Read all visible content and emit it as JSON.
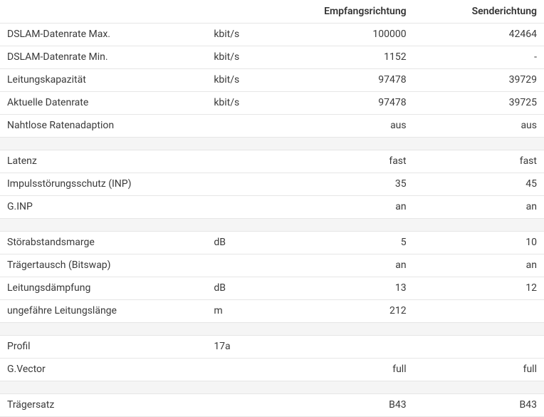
{
  "columns": {
    "label": "",
    "unit": "",
    "down": "Empfangsrichtung",
    "up": "Senderichtung"
  },
  "rows": [
    {
      "type": "data",
      "label": "DSLAM-Datenrate Max.",
      "unit": "kbit/s",
      "down": "100000",
      "up": "42464"
    },
    {
      "type": "data",
      "label": "DSLAM-Datenrate Min.",
      "unit": "kbit/s",
      "down": "1152",
      "up": "-"
    },
    {
      "type": "data",
      "label": "Leitungskapazität",
      "unit": "kbit/s",
      "down": "97478",
      "up": "39729"
    },
    {
      "type": "data",
      "label": "Aktuelle Datenrate",
      "unit": "kbit/s",
      "down": "97478",
      "up": "39725"
    },
    {
      "type": "data",
      "label": "Nahtlose Ratenadaption",
      "unit": "",
      "down": "aus",
      "up": "aus"
    },
    {
      "type": "spacer"
    },
    {
      "type": "data",
      "label": "Latenz",
      "unit": "",
      "down": "fast",
      "up": "fast"
    },
    {
      "type": "data",
      "label": "Impulsstörungsschutz (INP)",
      "unit": "",
      "down": "35",
      "up": "45"
    },
    {
      "type": "data",
      "label": "G.INP",
      "unit": "",
      "down": "an",
      "up": "an"
    },
    {
      "type": "spacer"
    },
    {
      "type": "data",
      "label": "Störabstandsmarge",
      "unit": "dB",
      "down": "5",
      "up": "10"
    },
    {
      "type": "data",
      "label": "Trägertausch (Bitswap)",
      "unit": "",
      "down": "an",
      "up": "an"
    },
    {
      "type": "data",
      "label": "Leitungsdämpfung",
      "unit": "dB",
      "down": "13",
      "up": "12"
    },
    {
      "type": "data",
      "label": "ungefähre Leitungslänge",
      "unit": "m",
      "down": "212",
      "up": ""
    },
    {
      "type": "spacer"
    },
    {
      "type": "data",
      "label": "Profil",
      "unit": "17a",
      "down": "",
      "up": ""
    },
    {
      "type": "data",
      "label": "G.Vector",
      "unit": "",
      "down": "full",
      "up": "full"
    },
    {
      "type": "spacer"
    },
    {
      "type": "data",
      "label": "Trägersatz",
      "unit": "",
      "down": "B43",
      "up": "B43"
    }
  ]
}
